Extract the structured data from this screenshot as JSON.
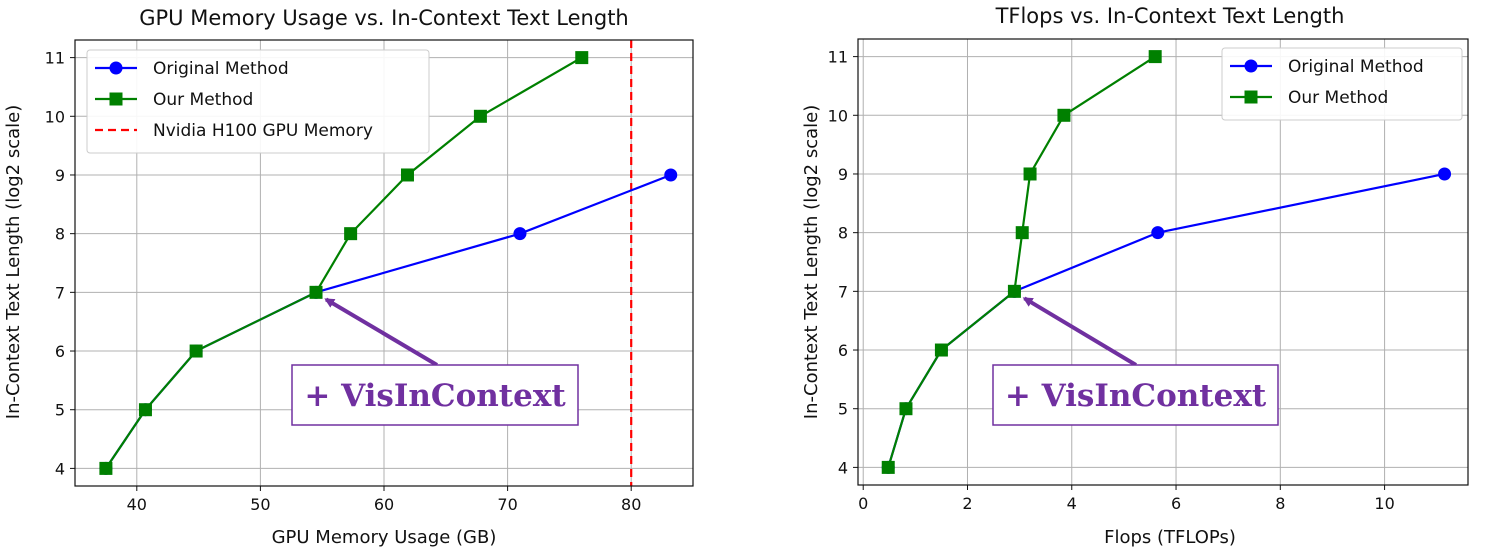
{
  "chart_data": [
    {
      "type": "line",
      "title": "GPU Memory Usage vs. In-Context Text Length",
      "xlabel": "GPU Memory Usage (GB)",
      "ylabel": "In-Context Text Length (log2 scale)",
      "xlim": [
        35,
        85
      ],
      "ylim": [
        3.7,
        11.3
      ],
      "xticks": [
        40,
        50,
        60,
        70,
        80
      ],
      "yticks": [
        4,
        5,
        6,
        7,
        8,
        9,
        10,
        11
      ],
      "grid": true,
      "legend_position": "top-left",
      "series": [
        {
          "name": "Original Method",
          "color": "#0000ff",
          "marker": "circle",
          "x": [
            37.5,
            40.7,
            44.8,
            54.5,
            71.0,
            83.2
          ],
          "y": [
            4,
            5,
            6,
            7,
            8,
            9
          ]
        },
        {
          "name": "Our Method",
          "color": "#008000",
          "marker": "square",
          "x": [
            37.5,
            40.7,
            44.8,
            54.5,
            57.3,
            61.9,
            67.8,
            76.0
          ],
          "y": [
            4,
            5,
            6,
            7,
            8,
            9,
            10,
            11
          ]
        }
      ],
      "reference_line": {
        "name": "Nvidia H100 GPU Memory",
        "x": 80,
        "color": "#ff0000",
        "style": "dashed"
      },
      "annotation": {
        "text": "+ VisInContext",
        "color": "#7030a0",
        "arrow_to": [
          54.5,
          7
        ]
      }
    },
    {
      "type": "line",
      "title": "TFlops vs. In-Context Text Length",
      "xlabel": "Flops (TFLOPs)",
      "ylabel": "In-Context Text Length (log2 scale)",
      "xlim": [
        -0.1,
        11.6
      ],
      "ylim": [
        3.7,
        11.3
      ],
      "xticks": [
        0,
        2,
        4,
        6,
        8,
        10
      ],
      "yticks": [
        4,
        5,
        6,
        7,
        8,
        9,
        10,
        11
      ],
      "grid": true,
      "legend_position": "top-right",
      "series": [
        {
          "name": "Original Method",
          "color": "#0000ff",
          "marker": "circle",
          "x": [
            0.48,
            0.82,
            1.5,
            2.9,
            5.65,
            11.15
          ],
          "y": [
            4,
            5,
            6,
            7,
            8,
            9
          ]
        },
        {
          "name": "Our Method",
          "color": "#008000",
          "marker": "square",
          "x": [
            0.48,
            0.82,
            1.5,
            2.9,
            3.05,
            3.2,
            3.85,
            5.6
          ],
          "y": [
            4,
            5,
            6,
            7,
            8,
            9,
            10,
            11
          ]
        }
      ],
      "annotation": {
        "text": "+ VisInContext",
        "color": "#7030a0",
        "arrow_to": [
          2.9,
          7
        ]
      }
    }
  ]
}
